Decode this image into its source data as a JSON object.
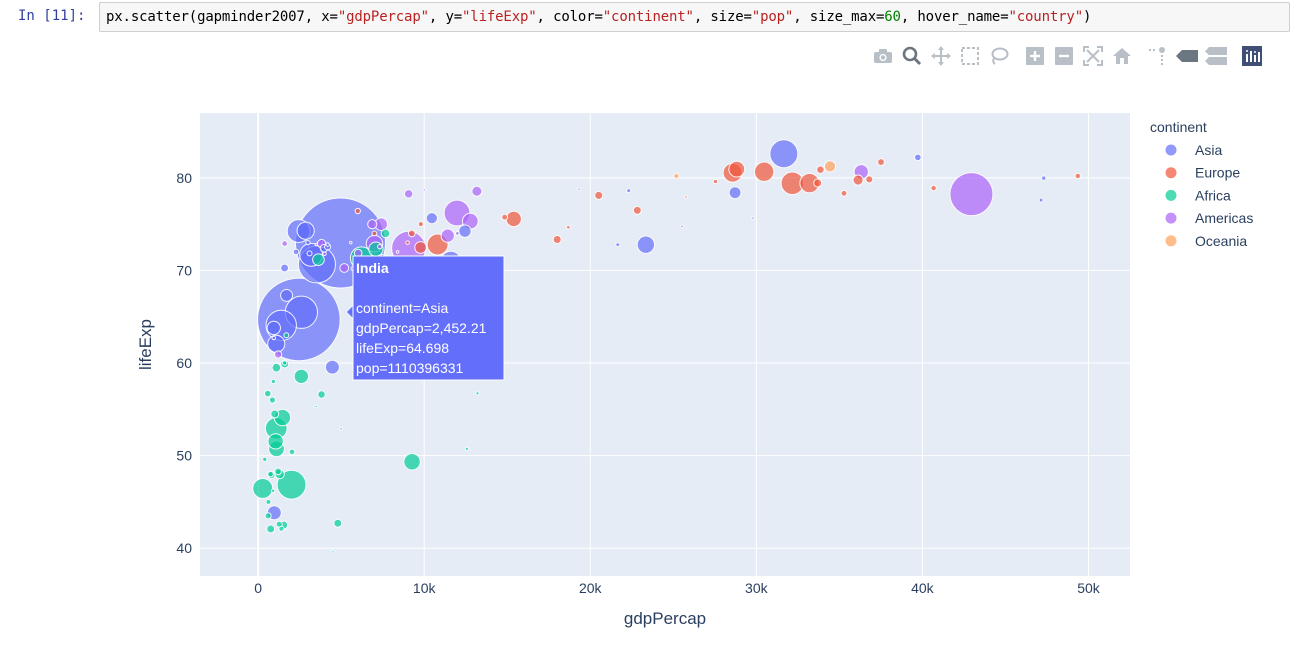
{
  "cell": {
    "prompt": "In [11]:",
    "code": {
      "p1": "px.scatter(gapminder2007, x=",
      "s1": "\"gdpPercap\"",
      "p2": ", y=",
      "s2": "\"lifeExp\"",
      "p3": ", color=",
      "s3": "\"continent\"",
      "p4": ", size=",
      "s4": "\"pop\"",
      "p5": ", size_max=",
      "n1": "60",
      "p6": ", hover_name=",
      "s5": "\"country\"",
      "p7": ")"
    }
  },
  "modebar": {
    "buttons": [
      "camera-icon",
      "zoom-icon",
      "pan-icon",
      "box-select-icon",
      "lasso-icon",
      "zoom-in-icon",
      "zoom-out-icon",
      "autoscale-icon",
      "reset-axes-icon",
      "spike-lines-icon",
      "hover-closest-icon",
      "hover-compare-icon",
      "plotly-logo-icon"
    ]
  },
  "chart_data": {
    "type": "scatter",
    "xlabel": "gdpPercap",
    "ylabel": "lifeExp",
    "xlim": [
      -3500,
      52500
    ],
    "ylim": [
      37,
      87
    ],
    "xticks": [
      0,
      10000,
      20000,
      30000,
      40000,
      50000
    ],
    "xtick_labels": [
      "0",
      "10k",
      "20k",
      "30k",
      "40k",
      "50k"
    ],
    "yticks": [
      40,
      50,
      60,
      70,
      80
    ],
    "ytick_labels": [
      "40",
      "50",
      "60",
      "70",
      "80"
    ],
    "grid": true,
    "legend": {
      "title": "continent",
      "position": "right",
      "entries": [
        "Asia",
        "Europe",
        "Africa",
        "Americas",
        "Oceania"
      ]
    },
    "colors": {
      "Asia": "#636efa",
      "Europe": "#EF553B",
      "Africa": "#00cc96",
      "Americas": "#ab63fa",
      "Oceania": "#FFA15A"
    },
    "series": [
      {
        "name": "Asia",
        "points": [
          [
            4959,
            72.96,
            1318683096
          ],
          [
            2452,
            64.7,
            1110396331
          ],
          [
            3541,
            70.65,
            223547000
          ],
          [
            2605,
            65.48,
            169270617
          ],
          [
            1391,
            64.06,
            150448339
          ],
          [
            31656,
            82.6,
            127467972
          ],
          [
            3190,
            71.69,
            85262356
          ],
          [
            2442,
            74.25,
            85262356
          ],
          [
            11606,
            70.96,
            69453570
          ],
          [
            7458,
            70.62,
            65068149
          ],
          [
            2862,
            74.29,
            47761980
          ],
          [
            1091,
            62.07,
            47761980
          ],
          [
            12452,
            74.24,
            24821286
          ],
          [
            28718,
            78.4,
            22909000
          ],
          [
            4471,
            59.55,
            31889923
          ],
          [
            1713,
            67.3,
            23301725
          ],
          [
            944,
            63.79,
            28901790
          ],
          [
            974,
            43.83,
            31889923
          ],
          [
            39725,
            82.21,
            6980412
          ],
          [
            47307,
            79.97,
            3204897
          ],
          [
            22316,
            78.62,
            2505559
          ],
          [
            23348,
            72.78,
            49044790
          ],
          [
            21655,
            72.78,
            2505559
          ],
          [
            10461,
            75.64,
            20434176
          ],
          [
            3970,
            72.4,
            9319622
          ],
          [
            4185,
            72.54,
            6053193
          ],
          [
            3096,
            71.84,
            4018332
          ],
          [
            25523,
            74.75,
            1051000
          ],
          [
            29796,
            75.64,
            708573
          ],
          [
            47143,
            77.59,
            2505559
          ],
          [
            944,
            62.7,
            2000000
          ],
          [
            2280,
            72.0,
            5000000
          ],
          [
            1593,
            70.26,
            10000000
          ],
          [
            4184,
            72.8,
            2000000
          ],
          [
            3000,
            73.0,
            3000000
          ]
        ]
      },
      {
        "name": "Europe",
        "points": [
          [
            32170,
            79.41,
            82400996
          ],
          [
            30470,
            80.66,
            61083916
          ],
          [
            28570,
            80.55,
            58147733
          ],
          [
            33203,
            79.43,
            60776238
          ],
          [
            28821,
            80.94,
            40448191
          ],
          [
            15390,
            75.56,
            38518241
          ],
          [
            9786,
            72.48,
            22276056
          ],
          [
            36126,
            79.76,
            16570613
          ],
          [
            33693,
            79.44,
            10392226
          ],
          [
            10808,
            72.8,
            71158647
          ],
          [
            18009,
            73.34,
            10228744
          ],
          [
            20510,
            78.1,
            10642836
          ],
          [
            22833,
            76.49,
            10228744
          ],
          [
            33860,
            80.88,
            9031088
          ],
          [
            36798,
            79.83,
            8199783
          ],
          [
            9253,
            74.0,
            7322858
          ],
          [
            37506,
            81.7,
            7554661
          ],
          [
            35278,
            78.33,
            5468120
          ],
          [
            14844,
            75.75,
            5447502
          ],
          [
            40676,
            78.89,
            4627926
          ],
          [
            49357,
            80.2,
            4627926
          ],
          [
            18678,
            74.66,
            2009245
          ],
          [
            6000,
            76.42,
            4552198
          ],
          [
            9000,
            73.0,
            2000000
          ],
          [
            9800,
            75.0,
            4000000
          ],
          [
            25768,
            77.93,
            301931
          ],
          [
            27538,
            79.6,
            3000000
          ],
          [
            7000,
            74.0,
            3800000
          ]
        ]
      },
      {
        "name": "Africa",
        "points": [
          [
            2014,
            46.86,
            135031164
          ],
          [
            1091,
            52.95,
            76511887
          ],
          [
            6223,
            71.34,
            80264543
          ],
          [
            278,
            46.46,
            64606759
          ],
          [
            1463,
            54.11,
            44000000
          ],
          [
            9270,
            49.34,
            43997828
          ],
          [
            7093,
            72.3,
            33333216
          ],
          [
            1056,
            51.54,
            38139640
          ],
          [
            2602,
            58.56,
            33333216
          ],
          [
            1107,
            50.73,
            40000000
          ],
          [
            758,
            42.08,
            10000000
          ],
          [
            1271,
            42.59,
            6000000
          ],
          [
            12570,
            50.73,
            1639131
          ],
          [
            4797,
            42.7,
            10000000
          ],
          [
            13206,
            56.73,
            1639131
          ],
          [
            3632,
            71.16,
            22000000
          ],
          [
            7670,
            74.0,
            12000000
          ],
          [
            1545,
            42.5,
            10000000
          ],
          [
            1600,
            59.9,
            10000000
          ],
          [
            1000,
            54.5,
            10000000
          ],
          [
            2042,
            50.4,
            5000000
          ],
          [
            750,
            48.0,
            5000000
          ],
          [
            620,
            45.0,
            4000000
          ],
          [
            860,
            56.0,
            6000000
          ],
          [
            920,
            58.0,
            3000000
          ],
          [
            1100,
            59.5,
            12000000
          ],
          [
            400,
            49.6,
            3000000
          ],
          [
            580,
            56.7,
            7000000
          ],
          [
            3500,
            55.3,
            1000000
          ],
          [
            4500,
            39.6,
            200000
          ],
          [
            12000,
            74.0,
            2000000
          ],
          [
            800,
            47.9,
            8000000
          ],
          [
            600,
            43.5,
            6000000
          ],
          [
            1400,
            42.1,
            4000000
          ],
          [
            1600,
            60.0,
            3000000
          ],
          [
            1300,
            48.0,
            14000000
          ],
          [
            1200,
            48.3,
            7000000
          ],
          [
            900,
            46.2,
            2000000
          ],
          [
            5000,
            52.9,
            1000000
          ],
          [
            3820,
            56.6,
            9000000
          ],
          [
            1700,
            63.0,
            4000000
          ]
        ]
      },
      {
        "name": "Americas",
        "points": [
          [
            42952,
            78.24,
            301139947
          ],
          [
            9066,
            72.39,
            190010647
          ],
          [
            11978,
            76.2,
            108700891
          ],
          [
            7007,
            72.89,
            44227550
          ],
          [
            12779,
            75.32,
            40301927
          ],
          [
            11416,
            73.75,
            28674757
          ],
          [
            7408,
            74.99,
            26084662
          ],
          [
            13172,
            78.55,
            16284741
          ],
          [
            6873,
            74.99,
            13755680
          ],
          [
            36319,
            80.65,
            33390141
          ],
          [
            5186,
            70.26,
            12572928
          ],
          [
            3820,
            72.9,
            11416987
          ],
          [
            9065,
            78.27,
            11416987
          ],
          [
            12000,
            74.0,
            2000000
          ],
          [
            6025,
            71.88,
            9319622
          ],
          [
            5728,
            70.2,
            3000000
          ],
          [
            1202,
            60.92,
            8502814
          ],
          [
            7321,
            72.57,
            3000000
          ],
          [
            5581,
            73.0,
            1000000
          ],
          [
            19328,
            78.75,
            1000000
          ],
          [
            10000,
            78.7,
            1000000
          ],
          [
            1600,
            72.9,
            5000000
          ],
          [
            3500,
            72.8,
            1000000
          ],
          [
            4000,
            71.8,
            2000000
          ],
          [
            8400,
            72.0,
            1000000
          ]
        ]
      },
      {
        "name": "Oceania",
        "points": [
          [
            34435,
            81.24,
            20434176
          ],
          [
            25185,
            80.2,
            4115771
          ]
        ]
      }
    ],
    "hover": {
      "title": "India",
      "line1": "continent=Asia",
      "line2": "gdpPercap=2,452.21",
      "line3": "lifeExp=64.698",
      "line4": "pop=1110396331"
    }
  }
}
